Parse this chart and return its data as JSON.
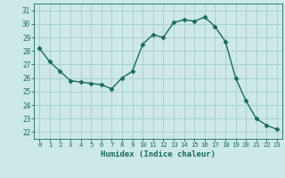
{
  "x": [
    0,
    1,
    2,
    3,
    4,
    5,
    6,
    7,
    8,
    9,
    10,
    11,
    12,
    13,
    14,
    15,
    16,
    17,
    18,
    19,
    20,
    21,
    22,
    23
  ],
  "y": [
    28.2,
    27.2,
    26.5,
    25.8,
    25.7,
    25.6,
    25.5,
    25.2,
    26.0,
    26.5,
    28.5,
    29.2,
    29.0,
    30.1,
    30.3,
    30.2,
    30.5,
    29.8,
    28.7,
    26.0,
    24.3,
    23.0,
    22.5,
    22.2
  ],
  "line_color": "#1a6b5a",
  "marker": "D",
  "marker_size": 2.5,
  "bg_color": "#cce8e8",
  "grid_color": "#aacccc",
  "xlabel": "Humidex (Indice chaleur)",
  "ylim": [
    21.5,
    31.5
  ],
  "xlim": [
    -0.5,
    23.5
  ],
  "yticks": [
    22,
    23,
    24,
    25,
    26,
    27,
    28,
    29,
    30,
    31
  ],
  "xticks": [
    0,
    1,
    2,
    3,
    4,
    5,
    6,
    7,
    8,
    9,
    10,
    11,
    12,
    13,
    14,
    15,
    16,
    17,
    18,
    19,
    20,
    21,
    22,
    23
  ],
  "tick_color": "#1a6b5a",
  "label_color": "#1a6b5a"
}
